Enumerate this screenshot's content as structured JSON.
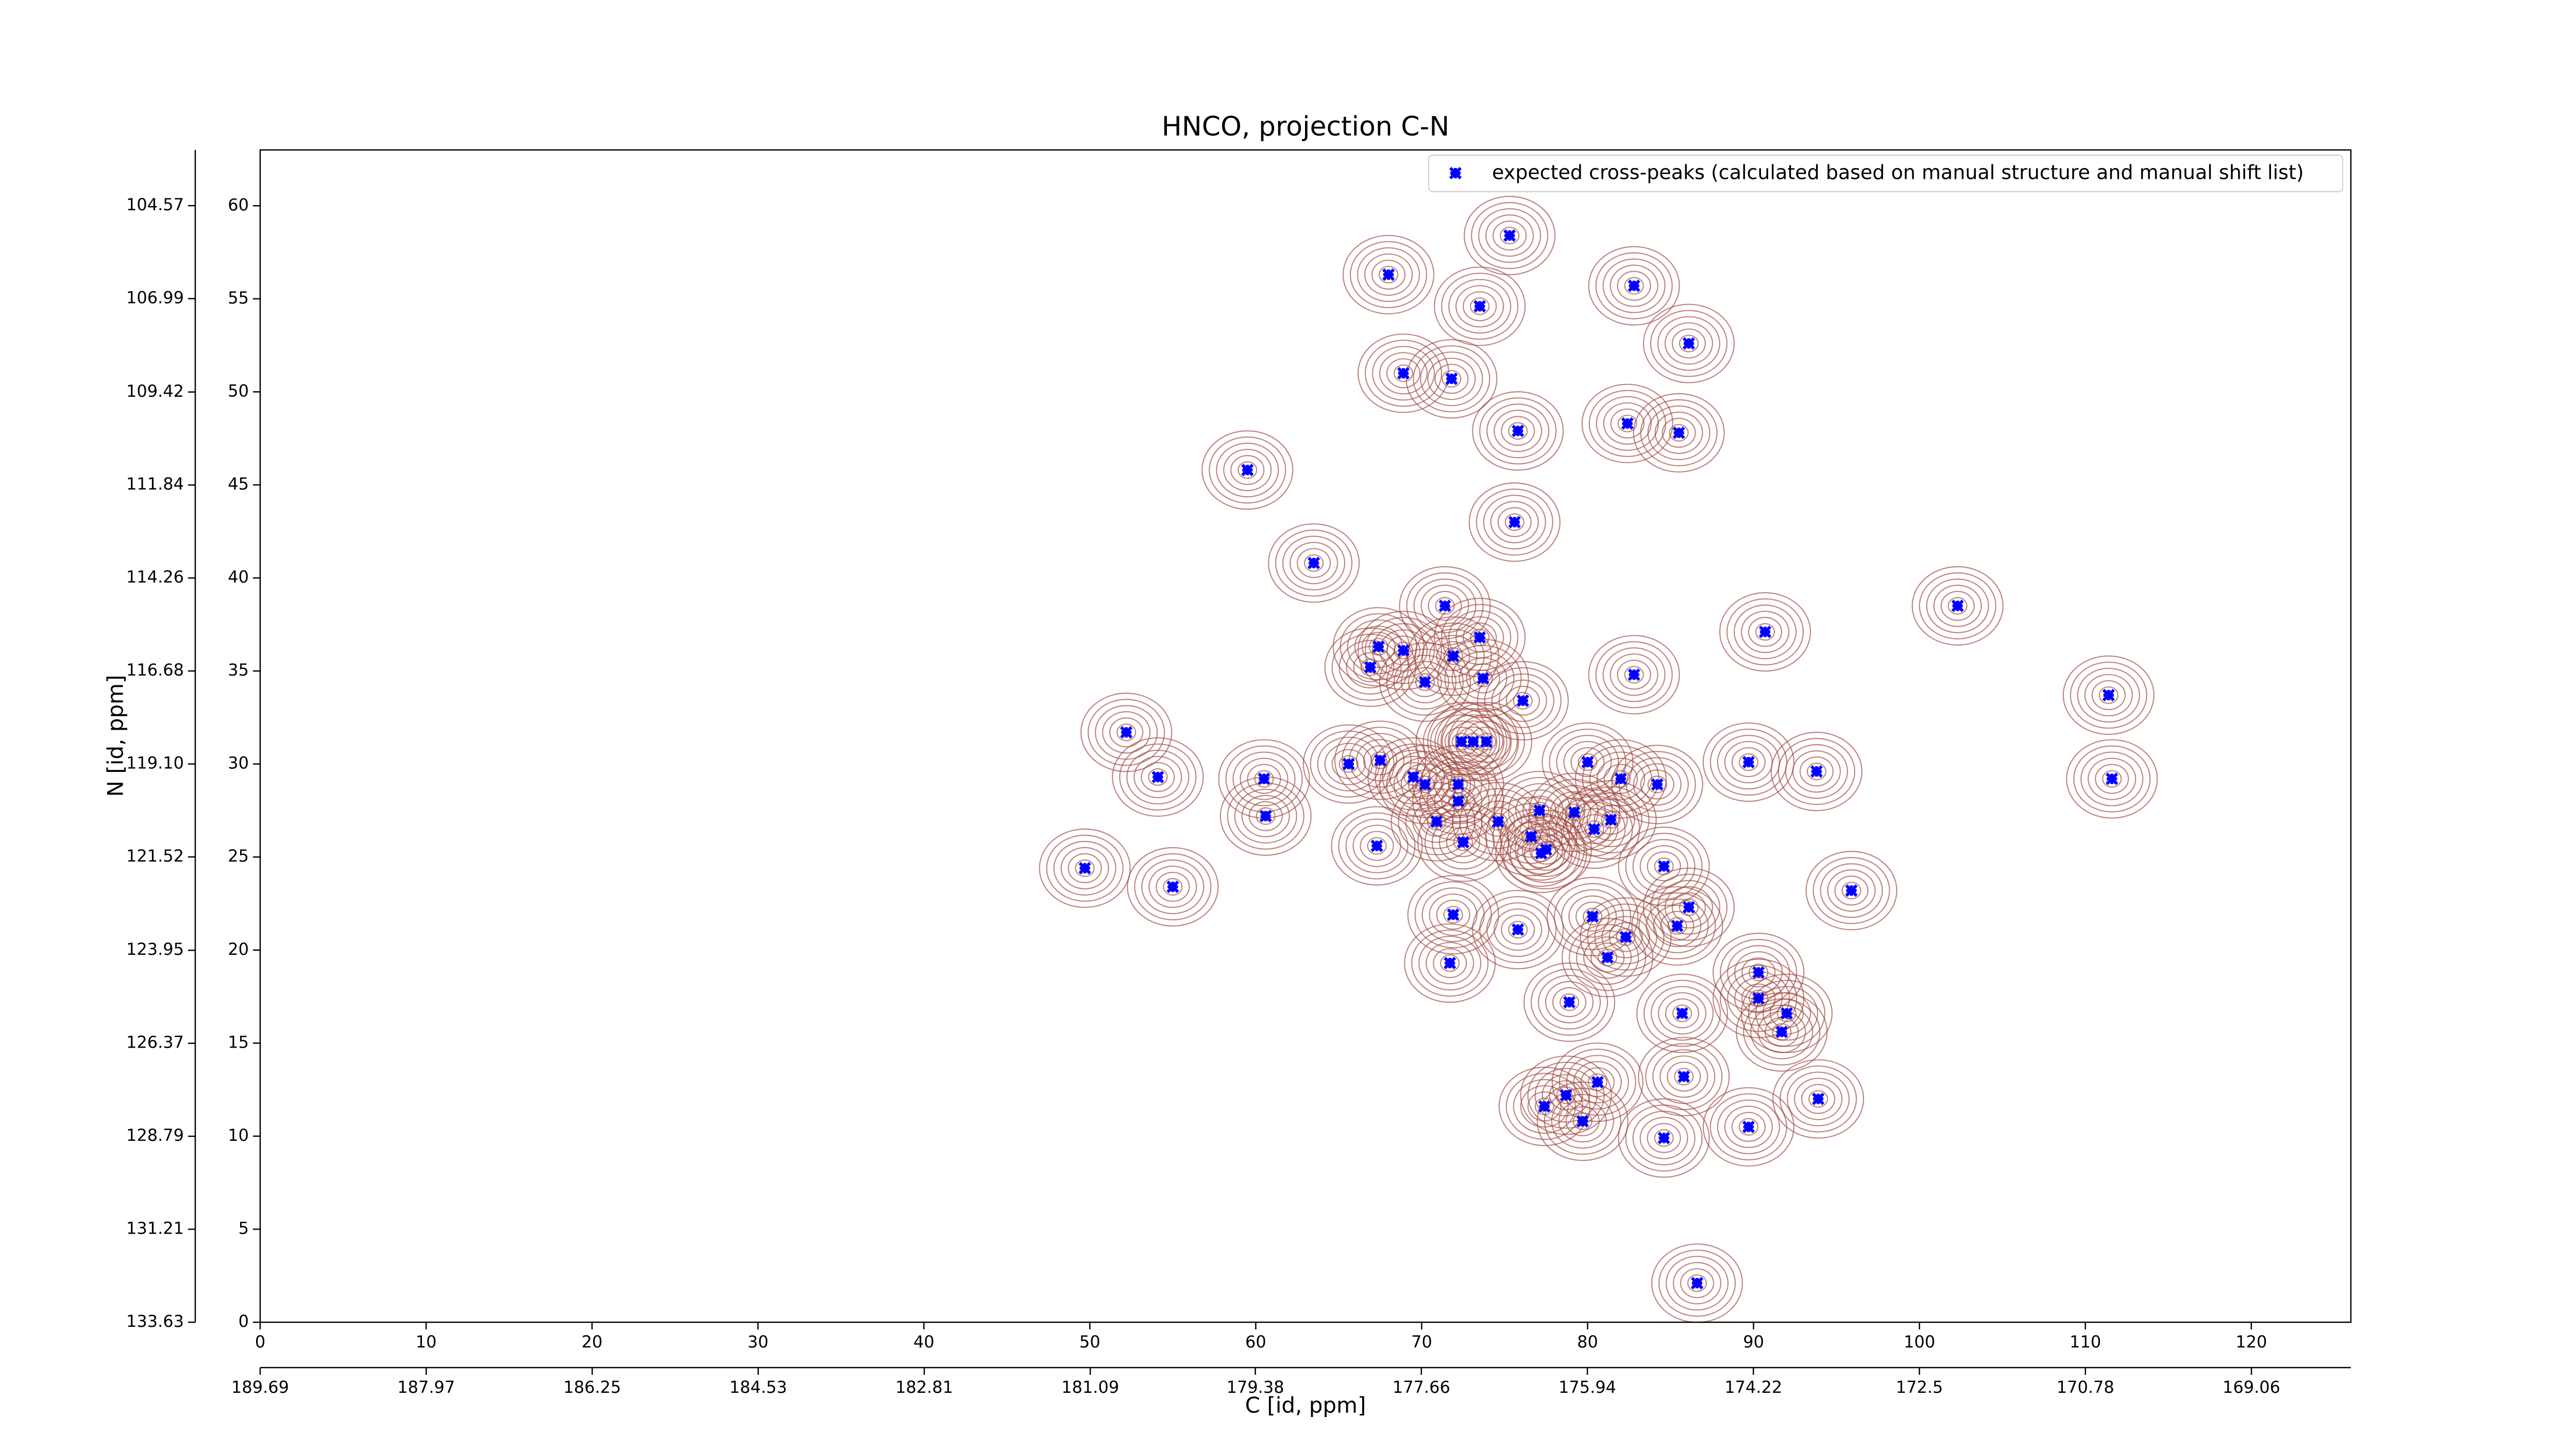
{
  "chart_data": {
    "type": "scatter",
    "title": "HNCO, projection C-N",
    "x_label": "C [id, ppm]",
    "y_label": "N [id, ppm]",
    "xlim": [
      0,
      126
    ],
    "ylim": [
      0,
      63
    ],
    "xticks": [
      0,
      10,
      20,
      30,
      40,
      50,
      60,
      70,
      80,
      90,
      100,
      110,
      120
    ],
    "yticks": [
      0,
      5,
      10,
      15,
      20,
      25,
      30,
      35,
      40,
      45,
      50,
      55,
      60
    ],
    "x2lim": [
      189.69,
      168.03
    ],
    "x2ticks": [
      189.69,
      187.97,
      186.25,
      184.53,
      182.81,
      181.09,
      179.38,
      177.66,
      175.94,
      174.22,
      172.5,
      170.78,
      169.06
    ],
    "y2lim": [
      133.63,
      103.12
    ],
    "y2ticks": [
      133.63,
      131.21,
      128.79,
      126.37,
      123.95,
      121.52,
      {
        "value": 119.1,
        "label": "119.10"
      },
      116.68,
      114.26,
      111.84,
      109.42,
      106.99,
      104.57
    ],
    "legend": "upper right",
    "x": [
      75.3,
      68.0,
      82.8,
      73.5,
      86.1,
      68.9,
      71.8,
      82.4,
      75.8,
      85.5,
      59.5,
      75.6,
      63.5,
      102.3,
      71.4,
      90.7,
      67.4,
      68.9,
      73.5,
      71.9,
      66.9,
      82.8,
      70.2,
      73.7,
      111.4,
      76.1,
      52.2,
      72.4,
      73.1,
      73.9,
      65.6,
      67.5,
      89.7,
      93.8,
      54.1,
      60.5,
      69.5,
      80.0,
      111.6,
      70.2,
      72.2,
      84.2,
      82.0,
      72.2,
      60.6,
      77.1,
      79.2,
      70.9,
      74.6,
      81.4,
      80.4,
      76.6,
      72.5,
      67.3,
      77.5,
      77.2,
      49.7,
      84.6,
      55.0,
      95.9,
      86.1,
      71.9,
      80.3,
      85.4,
      75.8,
      82.3,
      81.2,
      71.7,
      90.3,
      90.3,
      85.7,
      92.0,
      78.9,
      91.7,
      85.8,
      80.6,
      78.7,
      93.9,
      77.4,
      79.7,
      84.6,
      89.7,
      86.6
    ],
    "series": [
      {
        "name": "expected cross-peaks (calculated based on manual structure and manual shift list)",
        "color": "#0000ff",
        "values": [
          58.4,
          56.3,
          55.7,
          54.6,
          52.6,
          51.0,
          50.7,
          48.3,
          47.9,
          47.8,
          45.8,
          43.0,
          40.8,
          38.5,
          38.5,
          37.1,
          36.3,
          36.1,
          36.8,
          35.8,
          35.2,
          34.8,
          34.4,
          34.6,
          33.7,
          33.4,
          31.7,
          31.2,
          31.2,
          31.2,
          30.0,
          30.2,
          30.1,
          29.6,
          29.3,
          29.2,
          29.3,
          30.1,
          29.2,
          28.9,
          28.9,
          28.9,
          29.2,
          28.0,
          27.2,
          27.5,
          27.4,
          26.9,
          26.9,
          27.0,
          26.5,
          26.1,
          25.8,
          25.6,
          25.4,
          25.2,
          24.4,
          24.5,
          23.4,
          23.2,
          22.3,
          21.9,
          21.8,
          21.3,
          21.1,
          20.7,
          19.6,
          19.3,
          18.8,
          17.4,
          16.6,
          16.6,
          17.2,
          15.6,
          13.2,
          12.9,
          12.2,
          12.0,
          11.6,
          10.8,
          9.9,
          10.5,
          2.1
        ]
      }
    ]
  }
}
